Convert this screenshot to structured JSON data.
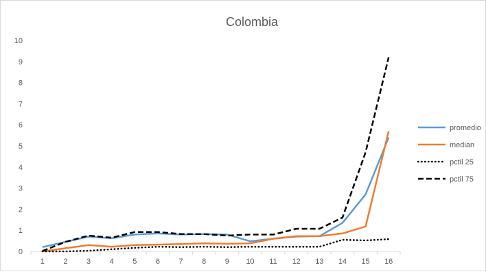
{
  "chart_data": {
    "type": "line",
    "title": "Colombia",
    "xlabel": "",
    "ylabel": "",
    "categories": [
      "1",
      "2",
      "3",
      "4",
      "5",
      "6",
      "7",
      "8",
      "9",
      "10",
      "11",
      "12",
      "13",
      "14",
      "15",
      "16"
    ],
    "ylim": [
      0,
      10
    ],
    "yticks": [
      0,
      1,
      2,
      3,
      4,
      5,
      6,
      7,
      8,
      9,
      10
    ],
    "grid": false,
    "legend": "right",
    "series": [
      {
        "name": "promedio",
        "color": "#5b9bd5",
        "dash": "solid",
        "values": [
          0.2,
          0.45,
          0.7,
          0.62,
          0.8,
          0.85,
          0.8,
          0.82,
          0.8,
          0.48,
          0.6,
          0.7,
          0.72,
          1.35,
          2.7,
          5.4
        ]
      },
      {
        "name": "median",
        "color": "#ed7d31",
        "dash": "solid",
        "values": [
          0.0,
          0.15,
          0.3,
          0.22,
          0.3,
          0.32,
          0.35,
          0.38,
          0.36,
          0.38,
          0.6,
          0.72,
          0.72,
          0.85,
          1.18,
          5.7
        ]
      },
      {
        "name": "pctil 25",
        "color": "#000000",
        "dash": "dot",
        "values": [
          0.0,
          0.0,
          0.03,
          0.1,
          0.17,
          0.22,
          0.2,
          0.22,
          0.2,
          0.22,
          0.22,
          0.22,
          0.22,
          0.55,
          0.52,
          0.58
        ]
      },
      {
        "name": "pctil 75",
        "color": "#000000",
        "dash": "dash",
        "values": [
          0.02,
          0.45,
          0.75,
          0.65,
          0.92,
          0.92,
          0.82,
          0.82,
          0.75,
          0.8,
          0.8,
          1.07,
          1.07,
          1.6,
          4.7,
          9.2
        ]
      }
    ]
  }
}
